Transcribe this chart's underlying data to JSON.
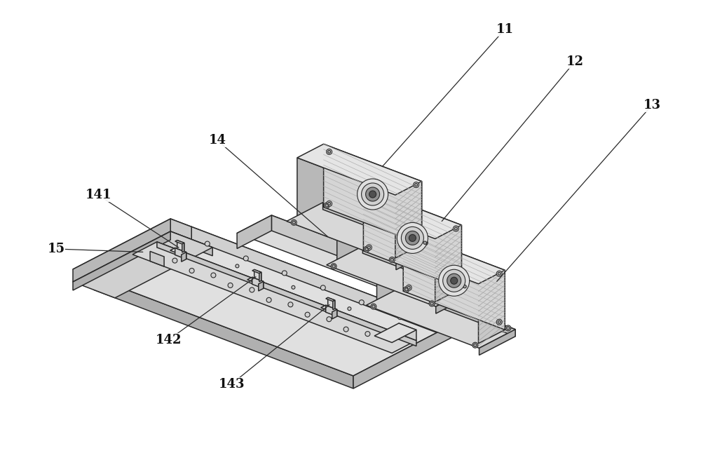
{
  "bg_color": "#ffffff",
  "line_color": "#2a2a2a",
  "figsize": [
    10.0,
    6.56
  ],
  "dpi": 100
}
